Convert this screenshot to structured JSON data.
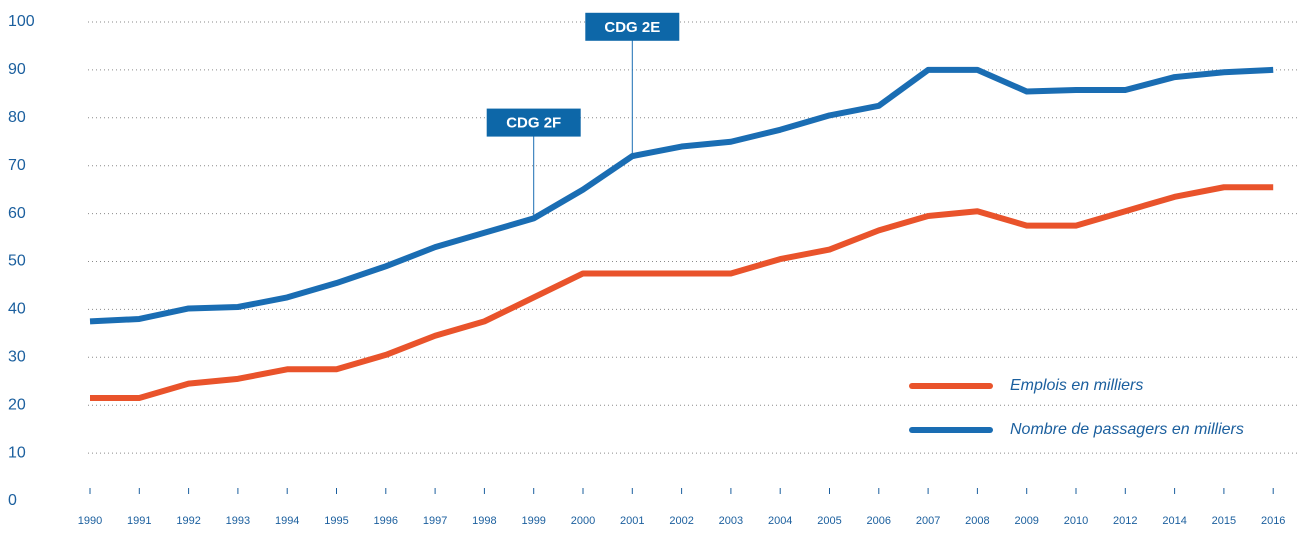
{
  "chart_data": {
    "type": "line",
    "categories": [
      "1990",
      "1991",
      "1992",
      "1993",
      "1994",
      "1995",
      "1996",
      "1997",
      "1998",
      "1999",
      "2000",
      "2001",
      "2002",
      "2003",
      "2004",
      "2005",
      "2006",
      "2007",
      "2008",
      "2009",
      "2010",
      "2012",
      "2014",
      "2015",
      "2016"
    ],
    "series": [
      {
        "name": "Emplois en milliers",
        "color": "#e9532b",
        "values": [
          21.5,
          21.5,
          24.5,
          25.5,
          27.5,
          27.5,
          30.5,
          34.5,
          37.5,
          42.5,
          47.5,
          47.5,
          47.5,
          47.5,
          50.5,
          52.5,
          56.5,
          59.5,
          60.5,
          57.5,
          57.5,
          60.5,
          63.5,
          65.5,
          65.5
        ]
      },
      {
        "name": "Nombre de passagers en milliers",
        "color": "#1a6db3",
        "values": [
          37.5,
          38,
          40.2,
          40.5,
          42.5,
          45.5,
          49,
          53,
          56,
          59,
          65,
          72,
          74,
          75,
          77.5,
          80.5,
          82.5,
          90,
          90,
          85.5,
          85.8,
          85.8,
          88.5,
          89.5,
          90
        ]
      }
    ],
    "annotations": [
      {
        "text": "CDG 2F",
        "x": "1999",
        "y": 79
      },
      {
        "text": "CDG 2E",
        "x": "2001",
        "y": 99
      }
    ],
    "ylim": [
      0,
      100
    ],
    "yticks": [
      0,
      10,
      20,
      30,
      40,
      50,
      60,
      70,
      80,
      90,
      100
    ],
    "grid": true,
    "legend": "lower right"
  }
}
